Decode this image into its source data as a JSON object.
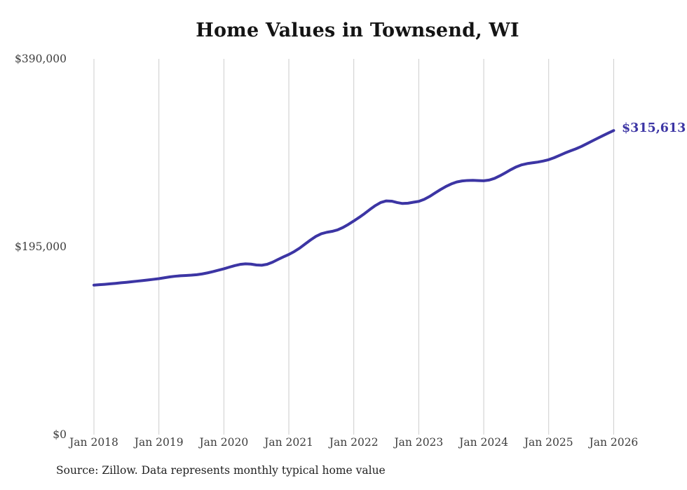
{
  "title": "Home Values in Townsend, WI",
  "source_note": "Source: Zillow. Data represents monthly typical home value",
  "colors": {
    "line": "#3c35a4",
    "grid": "#cccccc",
    "tick_text": "#3d3d3d",
    "title_text": "#141414",
    "source_text": "#222222"
  },
  "chart_data": {
    "type": "line",
    "title": "Home Values in Townsend, WI",
    "xlabel": "",
    "ylabel": "",
    "ylim": [
      0,
      390000
    ],
    "grid": "vertical-only",
    "legend": "none",
    "y_ticks": [
      {
        "label": "$0",
        "value": 0
      },
      {
        "label": "$195,000",
        "value": 195000
      },
      {
        "label": "$390,000",
        "value": 390000
      }
    ],
    "x_tick_labels": [
      "Jan 2018",
      "Jan 2019",
      "Jan 2020",
      "Jan 2021",
      "Jan 2022",
      "Jan 2023",
      "Jan 2024",
      "Jan 2025",
      "Jan 2026"
    ],
    "last_point": {
      "month": "2026-01",
      "value": 315613,
      "label": "$315,613"
    },
    "series": [
      {
        "name": "Typical home value",
        "months": [
          "2018-01",
          "2018-02",
          "2018-03",
          "2018-04",
          "2018-05",
          "2018-06",
          "2018-07",
          "2018-08",
          "2018-09",
          "2018-10",
          "2018-11",
          "2018-12",
          "2019-01",
          "2019-02",
          "2019-03",
          "2019-04",
          "2019-05",
          "2019-06",
          "2019-07",
          "2019-08",
          "2019-09",
          "2019-10",
          "2019-11",
          "2019-12",
          "2020-01",
          "2020-02",
          "2020-03",
          "2020-04",
          "2020-05",
          "2020-06",
          "2020-07",
          "2020-08",
          "2020-09",
          "2020-10",
          "2020-11",
          "2020-12",
          "2021-01",
          "2021-02",
          "2021-03",
          "2021-04",
          "2021-05",
          "2021-06",
          "2021-07",
          "2021-08",
          "2021-09",
          "2021-10",
          "2021-11",
          "2021-12",
          "2022-01",
          "2022-02",
          "2022-03",
          "2022-04",
          "2022-05",
          "2022-06",
          "2022-07",
          "2022-08",
          "2022-09",
          "2022-10",
          "2022-11",
          "2022-12",
          "2023-01",
          "2023-02",
          "2023-03",
          "2023-04",
          "2023-05",
          "2023-06",
          "2023-07",
          "2023-08",
          "2023-09",
          "2023-10",
          "2023-11",
          "2023-12",
          "2024-01",
          "2024-02",
          "2024-03",
          "2024-04",
          "2024-05",
          "2024-06",
          "2024-07",
          "2024-08",
          "2024-09",
          "2024-10",
          "2024-11",
          "2024-12",
          "2025-01",
          "2025-02",
          "2025-03",
          "2025-04",
          "2025-05",
          "2025-06",
          "2025-07",
          "2025-08",
          "2025-09",
          "2025-10",
          "2025-11",
          "2025-12",
          "2026-01"
        ],
        "values": [
          155200,
          155600,
          156000,
          156500,
          157000,
          157600,
          158100,
          158700,
          159300,
          159900,
          160500,
          161200,
          161900,
          162800,
          163700,
          164400,
          164900,
          165200,
          165500,
          166000,
          166800,
          167900,
          169200,
          170700,
          172100,
          173800,
          175400,
          176700,
          177300,
          177000,
          176100,
          175800,
          176800,
          179000,
          181800,
          184500,
          187000,
          190000,
          193600,
          197800,
          202000,
          205800,
          208500,
          210000,
          211000,
          212500,
          215000,
          218200,
          221800,
          225500,
          229500,
          233800,
          237800,
          241000,
          242600,
          242300,
          240900,
          239900,
          240200,
          241200,
          242100,
          244200,
          247200,
          250800,
          254300,
          257500,
          260200,
          262200,
          263300,
          263800,
          263900,
          263700,
          263500,
          264200,
          266000,
          268700,
          271800,
          275000,
          277900,
          280000,
          281300,
          282100,
          282900,
          284000,
          285400,
          287400,
          289800,
          292300,
          294500,
          296600,
          299000,
          301800,
          304700,
          307500,
          310300,
          313000,
          315613
        ]
      }
    ]
  }
}
